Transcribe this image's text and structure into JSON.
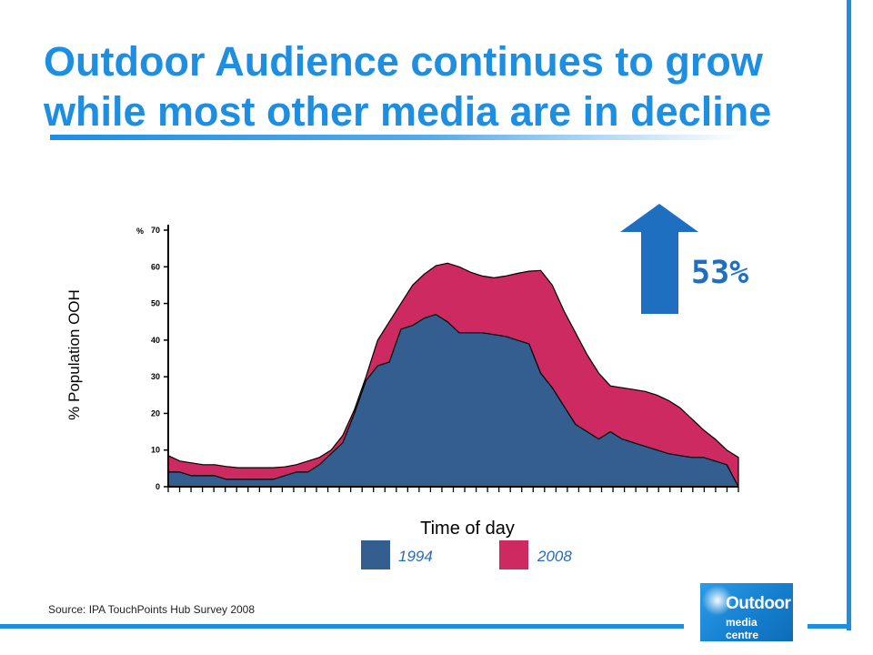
{
  "title": "Outdoor Audience continues to grow while most other media are in decline",
  "colors": {
    "accent": "#1e8ee0",
    "series_1994": "#335e8f",
    "series_2008": "#cc2a61",
    "arrow": "#1e6fc0"
  },
  "growth": {
    "icon": "up-arrow-icon",
    "value": "53%"
  },
  "source": "Source: IPA TouchPoints Hub Survey 2008",
  "logo": {
    "line1": "Outdoor",
    "line2": "media centre"
  },
  "chart_data": {
    "type": "area",
    "title": "",
    "xlabel": "Time of day",
    "ylabel": "% Population OOH",
    "y_unit_label": "%",
    "ylim": [
      0,
      70
    ],
    "yticks": [
      0,
      10,
      20,
      30,
      40,
      50,
      60,
      70
    ],
    "x_tick_count": 50,
    "grid": false,
    "legend": {
      "position": "bottom"
    },
    "x": [
      0,
      1,
      2,
      3,
      4,
      5,
      6,
      7,
      8,
      9,
      10,
      11,
      12,
      13,
      14,
      15,
      16,
      17,
      18,
      19,
      20,
      21,
      22,
      23,
      24,
      25,
      26,
      27,
      28,
      29,
      30,
      31,
      32,
      33,
      34,
      35,
      36,
      37,
      38,
      39,
      40,
      41,
      42,
      43,
      44,
      45,
      46,
      47,
      48,
      49
    ],
    "series": [
      {
        "name": "1994",
        "values": [
          4,
          4,
          3,
          3,
          3,
          2,
          2,
          2,
          2,
          2,
          3,
          4,
          4,
          6,
          9,
          12,
          20,
          29,
          33,
          34,
          43,
          44,
          46,
          47,
          45,
          42,
          42,
          42,
          41.5,
          41,
          40,
          39,
          31,
          27,
          22,
          17,
          15,
          13,
          15,
          13,
          12,
          11,
          10,
          9,
          8.5,
          8,
          8,
          7,
          6,
          0
        ]
      },
      {
        "name": "2008",
        "values": [
          8.5,
          7,
          6.5,
          6,
          6,
          5.5,
          5.2,
          5.2,
          5.2,
          5.2,
          5.4,
          6,
          7,
          8,
          10,
          14,
          21,
          30,
          40,
          45,
          50,
          55,
          58,
          60.3,
          61,
          60,
          58.5,
          57.5,
          57,
          57.5,
          58.2,
          58.8,
          59,
          55,
          48,
          42,
          36,
          31,
          27.5,
          27,
          26.5,
          26,
          25,
          23.5,
          21.5,
          18.5,
          15.5,
          13,
          10,
          8
        ]
      }
    ]
  }
}
